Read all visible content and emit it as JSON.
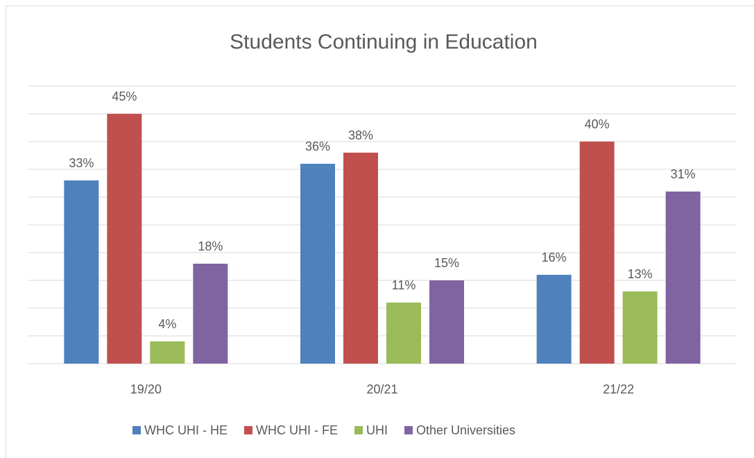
{
  "chart_data": {
    "type": "bar",
    "title": "Students Continuing in Education",
    "categories": [
      "19/20",
      "20/21",
      "21/22"
    ],
    "series": [
      {
        "name": "WHC UHI - HE",
        "color": "#4f81bd",
        "values": [
          33,
          36,
          16
        ],
        "value_labels": [
          "33%",
          "36%",
          "16%"
        ]
      },
      {
        "name": "WHC UHI - FE",
        "color": "#c0504d",
        "values": [
          45,
          38,
          40
        ],
        "value_labels": [
          "45%",
          "38%",
          "40%"
        ]
      },
      {
        "name": "UHI",
        "color": "#9bbb59",
        "values": [
          4,
          11,
          13
        ],
        "value_labels": [
          "4%",
          "11%",
          "13%"
        ]
      },
      {
        "name": "Other Universities",
        "color": "#8064a2",
        "values": [
          18,
          15,
          31
        ],
        "value_labels": [
          "18%",
          "15%",
          "31%"
        ]
      }
    ],
    "ylim": [
      0,
      50
    ],
    "yticks": [
      0,
      5,
      10,
      15,
      20,
      25,
      30,
      35,
      40,
      45,
      50
    ],
    "ytick_labels": false,
    "grid": true,
    "legend": "bottom"
  }
}
